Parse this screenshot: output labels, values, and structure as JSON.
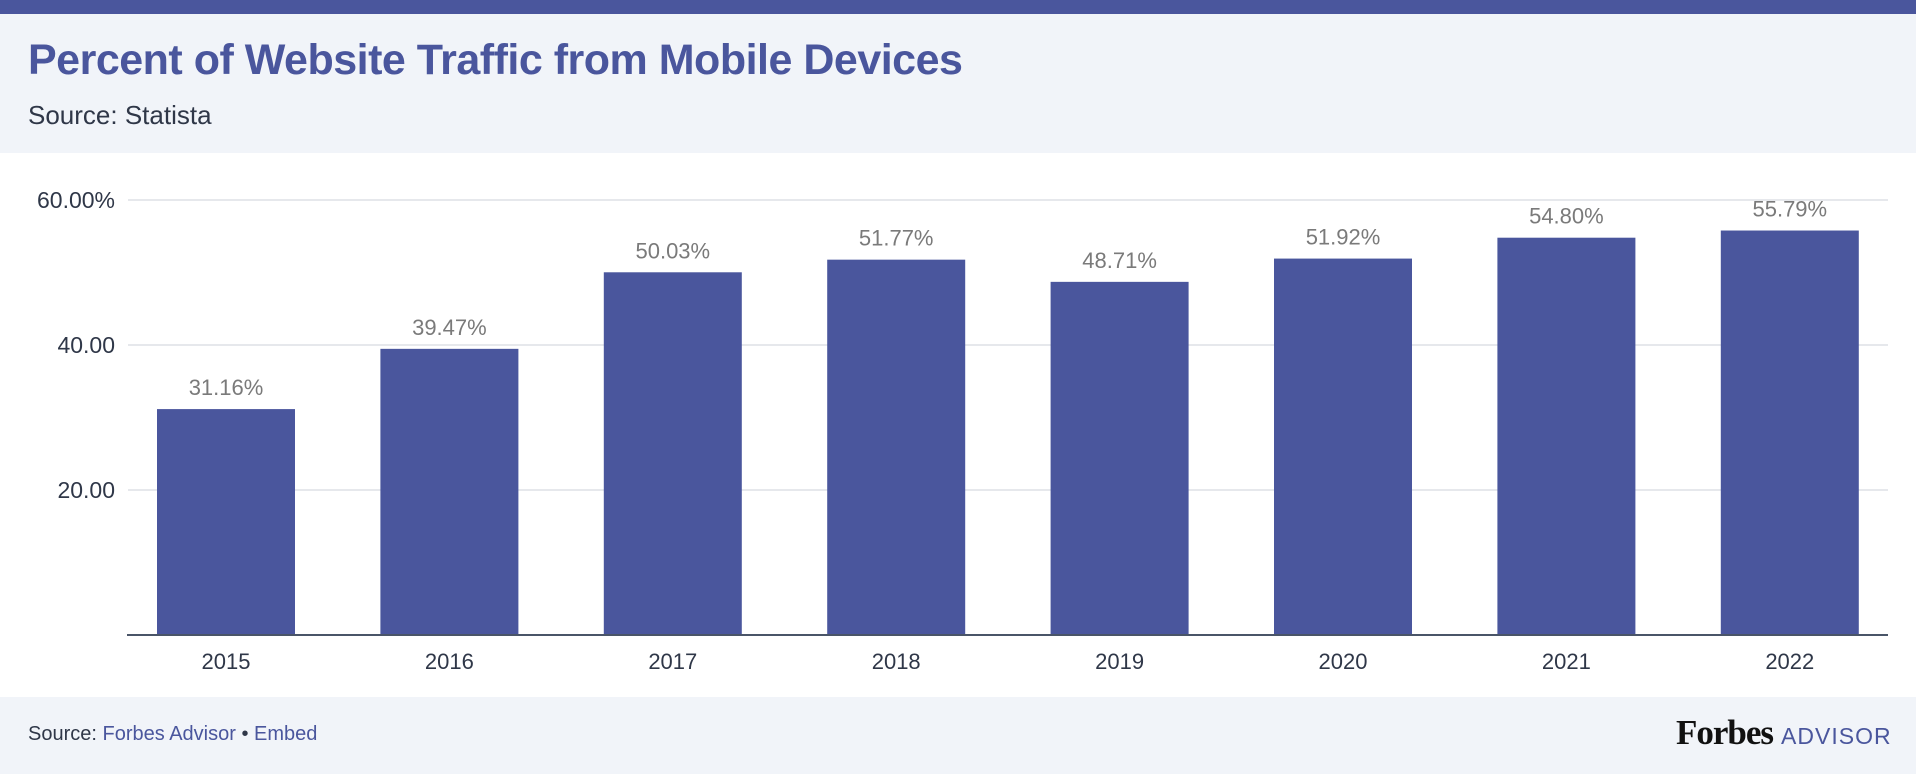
{
  "header": {
    "title": "Percent of Website Traffic from Mobile Devices",
    "subtitle": "Source: Statista"
  },
  "footer": {
    "source_prefix": "Source:",
    "source_link": "Forbes Advisor",
    "separator": "•",
    "embed_link": "Embed",
    "logo_word": "Forbes",
    "logo_suffix": "ADVISOR"
  },
  "colors": {
    "bar": "#4a569d",
    "accent": "#4a569d",
    "header_bg": "#f1f4f9",
    "grid": "#e6e8ec",
    "axis": "#4a5568",
    "data_label": "#7a7a7a",
    "tick_label": "#2f3748"
  },
  "chart_data": {
    "type": "bar",
    "title": "Percent of Website Traffic from Mobile Devices",
    "subtitle": "Source: Statista",
    "xlabel": "",
    "ylabel": "",
    "categories": [
      "2015",
      "2016",
      "2017",
      "2018",
      "2019",
      "2020",
      "2021",
      "2022"
    ],
    "values": [
      31.16,
      39.47,
      50.03,
      51.77,
      48.71,
      51.92,
      54.8,
      55.79
    ],
    "data_labels": [
      "31.16%",
      "39.47%",
      "50.03%",
      "51.77%",
      "48.71%",
      "51.92%",
      "54.80%",
      "55.79%"
    ],
    "ylim": [
      0,
      60
    ],
    "yticks": [
      20,
      40,
      60
    ],
    "ytick_labels": [
      "20.00",
      "40.00",
      "60.00%"
    ],
    "grid": true,
    "legend": "none"
  }
}
